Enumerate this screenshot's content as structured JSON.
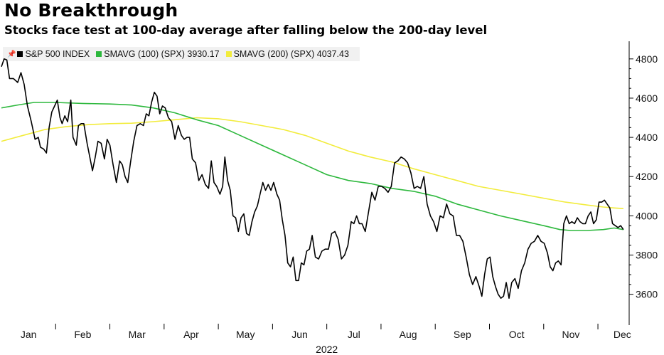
{
  "title": "No Breakthrough",
  "subtitle": "Stocks face test at 100-day average after falling below the 200-day level",
  "legend": [
    {
      "label": "S&P 500 INDEX",
      "color": "#000000"
    },
    {
      "label": "SMAVG (100) (SPX) 3930.17",
      "color": "#2db83d"
    },
    {
      "label": "SMAVG (200) (SPX) 4037.43",
      "color": "#f2ec3c"
    }
  ],
  "pin_icon": "pin-icon",
  "chart_data": {
    "type": "line",
    "title": "No Breakthrough",
    "subtitle": "Stocks face test at 100-day average after falling below the 200-day level",
    "xlabel": "2022",
    "ylabel": "",
    "x_range": [
      0,
      11.55
    ],
    "ylim": [
      3450,
      4890
    ],
    "yticks": [
      3600,
      3800,
      4000,
      4200,
      4400,
      4600,
      4800
    ],
    "xticks": [
      {
        "label": "Jan",
        "x": 0.5
      },
      {
        "label": "Feb",
        "x": 1.5
      },
      {
        "label": "Mar",
        "x": 2.5
      },
      {
        "label": "Apr",
        "x": 3.5
      },
      {
        "label": "May",
        "x": 4.5
      },
      {
        "label": "Jun",
        "x": 5.5
      },
      {
        "label": "Jul",
        "x": 6.5
      },
      {
        "label": "Aug",
        "x": 7.5
      },
      {
        "label": "Sep",
        "x": 8.5
      },
      {
        "label": "Oct",
        "x": 9.5
      },
      {
        "label": "Nov",
        "x": 10.5
      },
      {
        "label": "Dec",
        "x": 11.45
      }
    ],
    "year_label": "2022",
    "grid": false,
    "series": [
      {
        "name": "S&P 500 INDEX",
        "color": "#000000",
        "points": [
          [
            0.0,
            4760
          ],
          [
            0.05,
            4800
          ],
          [
            0.1,
            4795
          ],
          [
            0.15,
            4700
          ],
          [
            0.22,
            4700
          ],
          [
            0.3,
            4680
          ],
          [
            0.36,
            4730
          ],
          [
            0.42,
            4670
          ],
          [
            0.48,
            4560
          ],
          [
            0.55,
            4480
          ],
          [
            0.62,
            4390
          ],
          [
            0.68,
            4400
          ],
          [
            0.72,
            4350
          ],
          [
            0.78,
            4340
          ],
          [
            0.83,
            4320
          ],
          [
            0.88,
            4450
          ],
          [
            0.93,
            4530
          ],
          [
            0.98,
            4560
          ],
          [
            1.03,
            4590
          ],
          [
            1.08,
            4500
          ],
          [
            1.12,
            4470
          ],
          [
            1.17,
            4510
          ],
          [
            1.22,
            4480
          ],
          [
            1.28,
            4590
          ],
          [
            1.32,
            4400
          ],
          [
            1.38,
            4360
          ],
          [
            1.42,
            4460
          ],
          [
            1.47,
            4470
          ],
          [
            1.52,
            4470
          ],
          [
            1.58,
            4370
          ],
          [
            1.63,
            4300
          ],
          [
            1.68,
            4230
          ],
          [
            1.73,
            4300
          ],
          [
            1.78,
            4380
          ],
          [
            1.84,
            4370
          ],
          [
            1.9,
            4290
          ],
          [
            1.95,
            4390
          ],
          [
            2.0,
            4360
          ],
          [
            2.06,
            4260
          ],
          [
            2.12,
            4170
          ],
          [
            2.18,
            4280
          ],
          [
            2.23,
            4260
          ],
          [
            2.28,
            4200
          ],
          [
            2.33,
            4170
          ],
          [
            2.38,
            4270
          ],
          [
            2.44,
            4380
          ],
          [
            2.5,
            4460
          ],
          [
            2.56,
            4470
          ],
          [
            2.62,
            4460
          ],
          [
            2.67,
            4520
          ],
          [
            2.72,
            4510
          ],
          [
            2.77,
            4580
          ],
          [
            2.82,
            4630
          ],
          [
            2.87,
            4610
          ],
          [
            2.92,
            4520
          ],
          [
            2.97,
            4560
          ],
          [
            3.02,
            4550
          ],
          [
            3.08,
            4500
          ],
          [
            3.14,
            4480
          ],
          [
            3.2,
            4390
          ],
          [
            3.26,
            4460
          ],
          [
            3.32,
            4410
          ],
          [
            3.37,
            4390
          ],
          [
            3.42,
            4400
          ],
          [
            3.47,
            4400
          ],
          [
            3.52,
            4290
          ],
          [
            3.58,
            4270
          ],
          [
            3.64,
            4180
          ],
          [
            3.7,
            4210
          ],
          [
            3.76,
            4160
          ],
          [
            3.82,
            4140
          ],
          [
            3.87,
            4280
          ],
          [
            3.92,
            4170
          ],
          [
            3.97,
            4150
          ],
          [
            4.03,
            4110
          ],
          [
            4.08,
            4150
          ],
          [
            4.12,
            4300
          ],
          [
            4.17,
            4180
          ],
          [
            4.22,
            4130
          ],
          [
            4.27,
            4000
          ],
          [
            4.32,
            3990
          ],
          [
            4.37,
            3920
          ],
          [
            4.42,
            3990
          ],
          [
            4.47,
            4010
          ],
          [
            4.52,
            3910
          ],
          [
            4.57,
            3900
          ],
          [
            4.62,
            3970
          ],
          [
            4.67,
            4020
          ],
          [
            4.72,
            4050
          ],
          [
            4.77,
            4110
          ],
          [
            4.82,
            4170
          ],
          [
            4.87,
            4130
          ],
          [
            4.92,
            4160
          ],
          [
            4.97,
            4130
          ],
          [
            5.02,
            4170
          ],
          [
            5.08,
            4110
          ],
          [
            5.13,
            4080
          ],
          [
            5.18,
            3980
          ],
          [
            5.23,
            3900
          ],
          [
            5.28,
            3760
          ],
          [
            5.33,
            3740
          ],
          [
            5.38,
            3790
          ],
          [
            5.43,
            3670
          ],
          [
            5.48,
            3670
          ],
          [
            5.53,
            3760
          ],
          [
            5.58,
            3750
          ],
          [
            5.63,
            3820
          ],
          [
            5.68,
            3830
          ],
          [
            5.73,
            3900
          ],
          [
            5.79,
            3790
          ],
          [
            5.85,
            3780
          ],
          [
            5.91,
            3820
          ],
          [
            5.97,
            3830
          ],
          [
            6.03,
            3830
          ],
          [
            6.09,
            3910
          ],
          [
            6.15,
            3920
          ],
          [
            6.21,
            3880
          ],
          [
            6.27,
            3780
          ],
          [
            6.33,
            3800
          ],
          [
            6.39,
            3850
          ],
          [
            6.45,
            3970
          ],
          [
            6.5,
            3960
          ],
          [
            6.55,
            4000
          ],
          [
            6.6,
            3960
          ],
          [
            6.65,
            3960
          ],
          [
            6.71,
            3920
          ],
          [
            6.77,
            4020
          ],
          [
            6.83,
            4120
          ],
          [
            6.89,
            4080
          ],
          [
            6.95,
            4150
          ],
          [
            7.01,
            4150
          ],
          [
            7.07,
            4140
          ],
          [
            7.13,
            4120
          ],
          [
            7.19,
            4150
          ],
          [
            7.25,
            4270
          ],
          [
            7.31,
            4280
          ],
          [
            7.37,
            4300
          ],
          [
            7.43,
            4290
          ],
          [
            7.49,
            4270
          ],
          [
            7.55,
            4220
          ],
          [
            7.61,
            4140
          ],
          [
            7.67,
            4150
          ],
          [
            7.73,
            4140
          ],
          [
            7.79,
            4200
          ],
          [
            7.85,
            4060
          ],
          [
            7.91,
            4000
          ],
          [
            7.97,
            3970
          ],
          [
            8.03,
            3920
          ],
          [
            8.09,
            4000
          ],
          [
            8.15,
            3990
          ],
          [
            8.21,
            4060
          ],
          [
            8.27,
            4010
          ],
          [
            8.33,
            4000
          ],
          [
            8.39,
            3900
          ],
          [
            8.45,
            3900
          ],
          [
            8.51,
            3870
          ],
          [
            8.57,
            3790
          ],
          [
            8.63,
            3700
          ],
          [
            8.69,
            3650
          ],
          [
            8.75,
            3690
          ],
          [
            8.81,
            3640
          ],
          [
            8.86,
            3590
          ],
          [
            8.91,
            3700
          ],
          [
            8.96,
            3780
          ],
          [
            9.01,
            3790
          ],
          [
            9.06,
            3690
          ],
          [
            9.11,
            3640
          ],
          [
            9.16,
            3600
          ],
          [
            9.21,
            3580
          ],
          [
            9.26,
            3590
          ],
          [
            9.31,
            3660
          ],
          [
            9.36,
            3580
          ],
          [
            9.41,
            3660
          ],
          [
            9.47,
            3680
          ],
          [
            9.53,
            3630
          ],
          [
            9.59,
            3720
          ],
          [
            9.65,
            3760
          ],
          [
            9.71,
            3830
          ],
          [
            9.77,
            3860
          ],
          [
            9.83,
            3870
          ],
          [
            9.89,
            3900
          ],
          [
            9.95,
            3870
          ],
          [
            10.01,
            3860
          ],
          [
            10.07,
            3810
          ],
          [
            10.12,
            3740
          ],
          [
            10.17,
            3720
          ],
          [
            10.22,
            3760
          ],
          [
            10.27,
            3770
          ],
          [
            10.32,
            3750
          ],
          [
            10.37,
            3960
          ],
          [
            10.42,
            4000
          ],
          [
            10.47,
            3960
          ],
          [
            10.52,
            3970
          ],
          [
            10.57,
            3960
          ],
          [
            10.62,
            3990
          ],
          [
            10.67,
            3970
          ],
          [
            10.72,
            3960
          ],
          [
            10.77,
            3960
          ],
          [
            10.82,
            4000
          ],
          [
            10.87,
            4020
          ],
          [
            10.92,
            3960
          ],
          [
            10.97,
            3980
          ],
          [
            11.02,
            4070
          ],
          [
            11.07,
            4070
          ],
          [
            11.12,
            4080
          ],
          [
            11.17,
            4060
          ],
          [
            11.22,
            4040
          ],
          [
            11.27,
            3960
          ],
          [
            11.32,
            3950
          ],
          [
            11.37,
            3940
          ],
          [
            11.42,
            3950
          ],
          [
            11.47,
            3930
          ]
        ]
      },
      {
        "name": "SMAVG (100) (SPX)",
        "color": "#2db83d",
        "points": [
          [
            0.0,
            4550
          ],
          [
            0.3,
            4565
          ],
          [
            0.6,
            4578
          ],
          [
            1.0,
            4578
          ],
          [
            1.5,
            4573
          ],
          [
            2.0,
            4570
          ],
          [
            2.4,
            4565
          ],
          [
            2.8,
            4550
          ],
          [
            3.2,
            4525
          ],
          [
            3.6,
            4490
          ],
          [
            4.0,
            4460
          ],
          [
            4.4,
            4410
          ],
          [
            4.8,
            4360
          ],
          [
            5.2,
            4310
          ],
          [
            5.6,
            4260
          ],
          [
            6.0,
            4210
          ],
          [
            6.4,
            4180
          ],
          [
            6.8,
            4165
          ],
          [
            7.2,
            4140
          ],
          [
            7.6,
            4125
          ],
          [
            8.0,
            4100
          ],
          [
            8.4,
            4060
          ],
          [
            8.8,
            4030
          ],
          [
            9.2,
            4000
          ],
          [
            9.6,
            3975
          ],
          [
            10.0,
            3950
          ],
          [
            10.3,
            3930
          ],
          [
            10.5,
            3925
          ],
          [
            10.8,
            3925
          ],
          [
            11.1,
            3930
          ],
          [
            11.3,
            3938
          ],
          [
            11.47,
            3930
          ]
        ]
      },
      {
        "name": "SMAVG (200) (SPX)",
        "color": "#f2ec3c",
        "points": [
          [
            0.0,
            4380
          ],
          [
            0.4,
            4410
          ],
          [
            0.8,
            4440
          ],
          [
            1.2,
            4455
          ],
          [
            1.6,
            4465
          ],
          [
            2.0,
            4470
          ],
          [
            2.4,
            4472
          ],
          [
            2.8,
            4480
          ],
          [
            3.2,
            4490
          ],
          [
            3.6,
            4500
          ],
          [
            4.0,
            4495
          ],
          [
            4.4,
            4480
          ],
          [
            4.8,
            4460
          ],
          [
            5.2,
            4440
          ],
          [
            5.6,
            4410
          ],
          [
            6.0,
            4370
          ],
          [
            6.4,
            4330
          ],
          [
            6.8,
            4300
          ],
          [
            7.2,
            4275
          ],
          [
            7.6,
            4240
          ],
          [
            8.0,
            4210
          ],
          [
            8.4,
            4180
          ],
          [
            8.8,
            4150
          ],
          [
            9.2,
            4130
          ],
          [
            9.6,
            4110
          ],
          [
            10.0,
            4090
          ],
          [
            10.4,
            4070
          ],
          [
            10.8,
            4055
          ],
          [
            11.1,
            4045
          ],
          [
            11.3,
            4040
          ],
          [
            11.47,
            4037
          ]
        ]
      }
    ]
  }
}
